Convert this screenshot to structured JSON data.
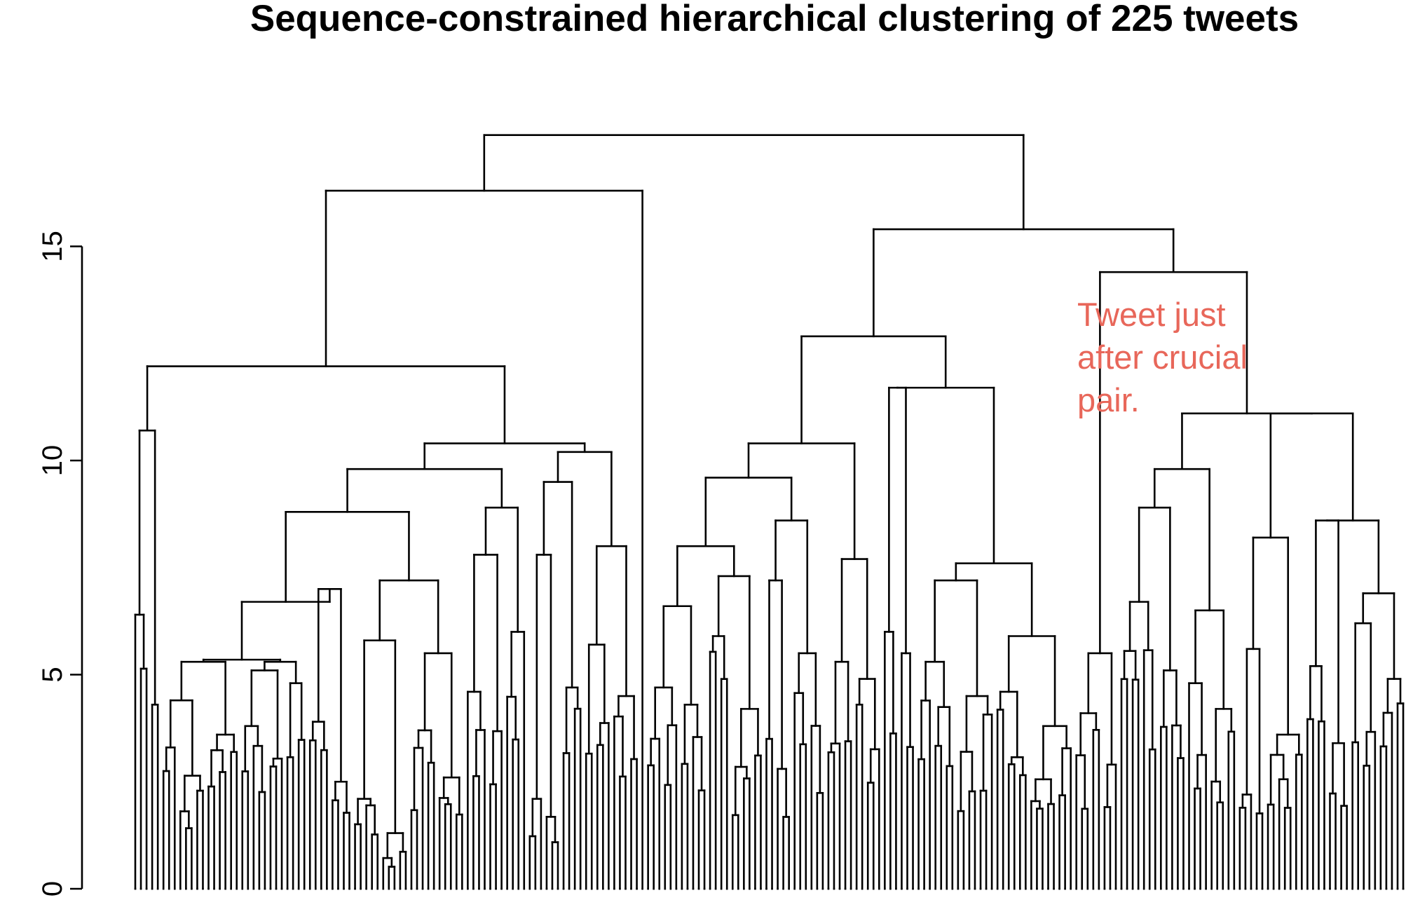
{
  "chart_data": {
    "type": "dendrogram",
    "title": "Sequence-constrained hierarchical clustering of 225 tweets",
    "n_leaves": 225,
    "ylim": [
      0,
      18
    ],
    "y_ticks": [
      0,
      5,
      10,
      15
    ],
    "y_tick_labels": [
      "0",
      "5",
      "10",
      "15"
    ],
    "grid": false,
    "annotation": {
      "lines": [
        "Tweet just",
        "after crucial",
        "pair."
      ],
      "color": "#e8675a"
    },
    "top_merges": [
      {
        "cluster": "root",
        "height": 17.6
      },
      {
        "cluster": "left",
        "height": 16.3
      },
      {
        "cluster": "right",
        "height": 15.4
      },
      {
        "cluster": "left-a",
        "height": 12.2
      },
      {
        "cluster": "right-a",
        "height": 12.9
      },
      {
        "cluster": "right-b",
        "height": 14.4
      },
      {
        "cluster": "left-a-1",
        "height": 10.7
      },
      {
        "cluster": "left-a-2",
        "height": 10.4
      },
      {
        "cluster": "right-a-1",
        "height": 10.4
      },
      {
        "cluster": "right-a-2",
        "height": 11.7
      },
      {
        "cluster": "right-b-2",
        "height": 11.1
      }
    ],
    "leaf_groups": [
      {
        "leaves": 5,
        "height": 10.7,
        "subs": [
          6.4,
          4.3
        ]
      },
      {
        "leaves": 14,
        "height": 5.3,
        "subs": [
          4.4,
          3.6,
          3.3
        ]
      },
      {
        "leaves": 12,
        "height": 5.3,
        "subs": [
          5.1,
          4.8,
          3.8
        ]
      },
      {
        "leaves": 8,
        "height": 7.0,
        "subs": [
          3.9,
          2.5
        ]
      },
      {
        "leaves": 10,
        "height": 5.8,
        "subs": [
          2.1,
          1.3
        ]
      },
      {
        "leaves": 10,
        "height": 5.5,
        "subs": [
          3.7,
          2.6
        ]
      },
      {
        "leaves": 11,
        "height": 8.9,
        "subs": [
          7.8,
          6.0,
          4.6
        ]
      },
      {
        "leaves": 10,
        "height": 9.5,
        "subs": [
          7.8,
          4.7,
          2.1
        ]
      },
      {
        "leaves": 10,
        "height": 8.0,
        "subs": [
          5.7,
          4.5
        ]
      },
      {
        "leaves": 11,
        "height": 6.6,
        "subs": [
          4.7,
          4.3
        ]
      },
      {
        "leaves": 10,
        "height": 7.3,
        "subs": [
          5.9,
          4.2
        ]
      },
      {
        "leaves": 11,
        "height": 8.6,
        "subs": [
          7.2,
          5.5,
          3.5
        ]
      },
      {
        "leaves": 10,
        "height": 7.7,
        "subs": [
          5.3,
          4.9
        ]
      },
      {
        "leaves": 6,
        "height": 11.7,
        "subs": [
          6.0,
          5.5
        ]
      },
      {
        "leaves": 14,
        "height": 7.2,
        "subs": [
          5.3,
          4.5
        ]
      },
      {
        "leaves": 14,
        "height": 5.9,
        "subs": [
          4.6,
          3.8
        ]
      },
      {
        "leaves": 8,
        "height": 5.5,
        "subs": [
          4.1,
          2.9
        ]
      },
      {
        "leaves": 12,
        "height": 8.9,
        "subs": [
          6.7,
          5.1
        ]
      },
      {
        "leaves": 9,
        "height": 6.5,
        "subs": [
          4.8,
          4.2
        ]
      },
      {
        "leaves": 12,
        "height": 8.2,
        "subs": [
          5.6,
          3.6,
          2.2
        ]
      },
      {
        "leaves": 8,
        "height": 8.6,
        "subs": [
          5.2,
          3.4
        ]
      },
      {
        "leaves": 10,
        "height": 6.9,
        "subs": [
          6.2,
          4.9
        ]
      }
    ]
  }
}
